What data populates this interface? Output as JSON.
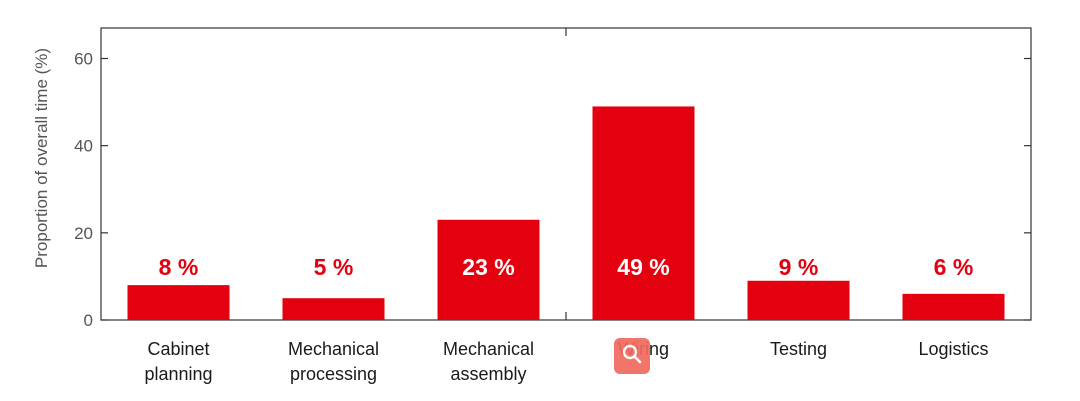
{
  "chart_data": {
    "type": "bar",
    "categories": [
      [
        "Cabinet",
        "planning"
      ],
      [
        "Mechanical",
        "processing"
      ],
      [
        "Mechanical",
        "assembly"
      ],
      [
        "Wiring"
      ],
      [
        "Testing"
      ],
      [
        "Logistics"
      ]
    ],
    "values": [
      8,
      5,
      23,
      49,
      9,
      6
    ],
    "data_labels": [
      "8 %",
      "5 %",
      "23 %",
      "49 %",
      "9 %",
      "6 %"
    ],
    "ylabel": "Proportion of overall time (%)",
    "ylim": [
      0,
      67
    ],
    "yticks": [
      0,
      20,
      40,
      60
    ],
    "grid": false,
    "bar_color": "#e3000f",
    "label_outside_color": "#e3000f",
    "label_inside_color": "#ffffff"
  },
  "overlay": {
    "zoom_button_icon": "magnifier-icon",
    "zoom_button_color": "#f06a5f"
  }
}
